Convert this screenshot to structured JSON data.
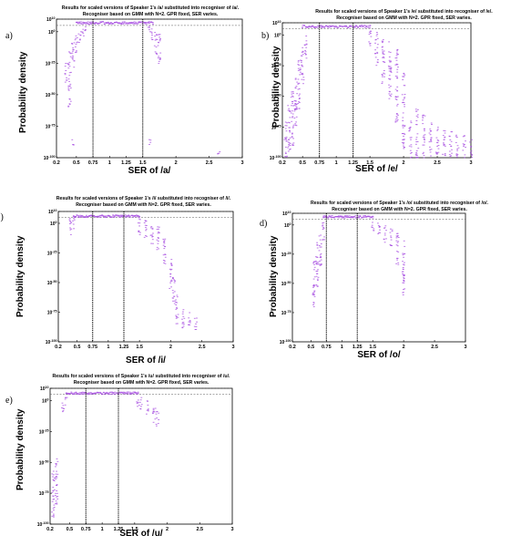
{
  "colors": {
    "points": "#a64ce0",
    "frame": "#000000",
    "dashed": "#555555"
  },
  "chart_data": [
    {
      "type": "scatter",
      "panel_label": "a)",
      "title_line1": "Results for scaled versions of Speaker 1's /a/ substituted into recogniser of /a/.",
      "title_line2": "Recogniser based on GMM with N=2. GPR fixed, SER varies.",
      "xlabel": "SER of /a/",
      "ylabel": "Probability density",
      "x_ticks": [
        "0.2",
        "0.5",
        "0.75",
        "1",
        "1.25",
        "1.5",
        "2",
        "2.5",
        "3"
      ],
      "y_ticks": [
        "10^10",
        "10^0",
        "10^-25",
        "10^-50",
        "10^-75",
        "10^-100"
      ],
      "xlim": [
        0.2,
        3
      ],
      "log_ylim": [
        -100,
        10
      ],
      "vlines": [
        0.75,
        1.5
      ],
      "plateau": {
        "x_start": 0.5,
        "x_end": 1.65,
        "log_y": 8
      },
      "clusters": [
        {
          "x": 0.35,
          "log_y": [
            -25,
            -40
          ]
        },
        {
          "x": 0.4,
          "log_y": [
            -15,
            -60
          ]
        },
        {
          "x": 0.45,
          "log_y": [
            -8,
            -30
          ]
        },
        {
          "x": 0.5,
          "log_y": [
            -3,
            -20
          ]
        },
        {
          "x": 0.55,
          "log_y": [
            0,
            -10
          ]
        },
        {
          "x": 0.6,
          "log_y": [
            3,
            -5
          ]
        },
        {
          "x": 0.65,
          "log_y": [
            5,
            0
          ]
        },
        {
          "x": 1.6,
          "log_y": [
            5,
            -2
          ]
        },
        {
          "x": 1.65,
          "log_y": [
            3,
            -8
          ]
        },
        {
          "x": 1.7,
          "log_y": [
            0,
            -20
          ]
        },
        {
          "x": 1.75,
          "log_y": [
            -2,
            -30
          ]
        },
        {
          "x": 0.45,
          "log_y": [
            -85,
            -90
          ]
        },
        {
          "x": 1.6,
          "log_y": [
            -85,
            -90
          ]
        },
        {
          "x": 2.65,
          "log_y": [
            -95,
            -98
          ]
        }
      ]
    },
    {
      "type": "scatter",
      "panel_label": "b)",
      "title_line1": "Results for scaled versions of Speaker 1's /e/ substituted into recogniser of /e/.",
      "title_line2": "Recogniser based on GMM with N=2. GPR fixed, SER varies.",
      "xlabel": "SER of /e/",
      "ylabel": "Probability density",
      "x_ticks": [
        "0.2",
        "0.5",
        "0.75",
        "1",
        "1.25",
        "1.5",
        "2",
        "2.5",
        "3"
      ],
      "y_ticks": [
        "10^10",
        "10^0",
        "10^-25",
        "10^-50",
        "10^-75",
        "10^-100"
      ],
      "xlim": [
        0.2,
        3
      ],
      "log_ylim": [
        -100,
        10
      ],
      "vlines": [
        0.75,
        1.25
      ],
      "plateau": {
        "x_start": 0.5,
        "x_end": 1.5,
        "log_y": 8
      },
      "clusters": [
        {
          "x": 0.25,
          "log_y": [
            -70,
            -100
          ]
        },
        {
          "x": 0.3,
          "log_y": [
            -55,
            -95
          ]
        },
        {
          "x": 0.35,
          "log_y": [
            -45,
            -90
          ]
        },
        {
          "x": 0.4,
          "log_y": [
            -35,
            -80
          ]
        },
        {
          "x": 0.45,
          "log_y": [
            -20,
            -60
          ]
        },
        {
          "x": 0.5,
          "log_y": [
            -10,
            -40
          ]
        },
        {
          "x": 0.55,
          "log_y": [
            0,
            -20
          ]
        },
        {
          "x": 1.5,
          "log_y": [
            5,
            -10
          ]
        },
        {
          "x": 1.6,
          "log_y": [
            3,
            -25
          ]
        },
        {
          "x": 1.7,
          "log_y": [
            0,
            -40
          ]
        },
        {
          "x": 1.8,
          "log_y": [
            -5,
            -55
          ]
        },
        {
          "x": 1.9,
          "log_y": [
            -10,
            -75
          ]
        },
        {
          "x": 2.0,
          "log_y": [
            -30,
            -95
          ]
        },
        {
          "x": 2.1,
          "log_y": [
            -70,
            -100
          ]
        },
        {
          "x": 2.2,
          "log_y": [
            -60,
            -100
          ]
        },
        {
          "x": 2.3,
          "log_y": [
            -65,
            -100
          ]
        },
        {
          "x": 2.4,
          "log_y": [
            -70,
            -100
          ]
        },
        {
          "x": 2.5,
          "log_y": [
            -75,
            -100
          ]
        },
        {
          "x": 2.6,
          "log_y": [
            -75,
            -100
          ]
        },
        {
          "x": 2.7,
          "log_y": [
            -78,
            -100
          ]
        },
        {
          "x": 2.8,
          "log_y": [
            -80,
            -100
          ]
        },
        {
          "x": 2.9,
          "log_y": [
            -82,
            -100
          ]
        },
        {
          "x": 3.0,
          "log_y": [
            -85,
            -100
          ]
        }
      ]
    },
    {
      "type": "scatter",
      "panel_label": "c)",
      "title_line1": "Results for scaled versions of Speaker 1's /i/ substituted into recogniser of /i/.",
      "title_line2": "Recogniser based on GMM with N=2. GPR fixed, SER varies.",
      "xlabel": "SER of /i/",
      "ylabel": "Probability density",
      "x_ticks": [
        "0.2",
        "0.5",
        "0.75",
        "1",
        "1.25",
        "1.5",
        "2",
        "2.5",
        "3"
      ],
      "y_ticks": [
        "10^10",
        "10^0",
        "10^-25",
        "10^-50",
        "10^-75",
        "10^-100"
      ],
      "xlim": [
        0.2,
        3
      ],
      "log_ylim": [
        -100,
        10
      ],
      "vlines": [
        0.75,
        1.25
      ],
      "plateau": {
        "x_start": 0.45,
        "x_end": 1.5,
        "log_y": 7
      },
      "clusters": [
        {
          "x": 0.4,
          "log_y": [
            5,
            -10
          ]
        },
        {
          "x": 0.45,
          "log_y": [
            6,
            -5
          ]
        },
        {
          "x": 1.5,
          "log_y": [
            5,
            -10
          ]
        },
        {
          "x": 1.6,
          "log_y": [
            3,
            -15
          ]
        },
        {
          "x": 1.7,
          "log_y": [
            0,
            -20
          ]
        },
        {
          "x": 1.8,
          "log_y": [
            -3,
            -25
          ]
        },
        {
          "x": 1.9,
          "log_y": [
            -8,
            -35
          ]
        },
        {
          "x": 2.0,
          "log_y": [
            -30,
            -55
          ]
        },
        {
          "x": 2.05,
          "log_y": [
            -45,
            -70
          ]
        },
        {
          "x": 2.1,
          "log_y": [
            -60,
            -85
          ]
        },
        {
          "x": 2.2,
          "log_y": [
            -70,
            -90
          ]
        },
        {
          "x": 2.3,
          "log_y": [
            -75,
            -88
          ]
        },
        {
          "x": 2.4,
          "log_y": [
            -78,
            -90
          ]
        }
      ]
    },
    {
      "type": "scatter",
      "panel_label": "d)",
      "title_line1": "Results for scaled versions of Speaker 1's /o/ substituted into recogniser of /o/.",
      "title_line2": "Recogniser based on GMM with N=2. GPR fixed, SER varies.",
      "xlabel": "SER of /o/",
      "ylabel": "Probability density",
      "x_ticks": [
        "0.2",
        "0.5",
        "0.75",
        "1",
        "1.25",
        "1.5",
        "2",
        "2.5",
        "3"
      ],
      "y_ticks": [
        "10^10",
        "10^0",
        "10^-25",
        "10^-50",
        "10^-75",
        "10^-100"
      ],
      "xlim": [
        0.2,
        3
      ],
      "log_ylim": [
        -100,
        10
      ],
      "vlines": [
        0.75,
        1.25
      ],
      "plateau": {
        "x_start": 0.7,
        "x_end": 1.5,
        "log_y": 8
      },
      "clusters": [
        {
          "x": 0.55,
          "log_y": [
            -30,
            -70
          ]
        },
        {
          "x": 0.6,
          "log_y": [
            -15,
            -55
          ]
        },
        {
          "x": 0.65,
          "log_y": [
            -5,
            -35
          ]
        },
        {
          "x": 0.7,
          "log_y": [
            2,
            -15
          ]
        },
        {
          "x": 1.5,
          "log_y": [
            5,
            -5
          ]
        },
        {
          "x": 1.6,
          "log_y": [
            3,
            -10
          ]
        },
        {
          "x": 1.7,
          "log_y": [
            0,
            -15
          ]
        },
        {
          "x": 1.8,
          "log_y": [
            -3,
            -20
          ]
        },
        {
          "x": 1.9,
          "log_y": [
            -5,
            -35
          ]
        },
        {
          "x": 2.0,
          "log_y": [
            -10,
            -60
          ]
        }
      ]
    },
    {
      "type": "scatter",
      "panel_label": "e)",
      "title_line1": "Results for scaled versions of Speaker 1's /u/ substituted into recogniser of /u/.",
      "title_line2": "Recogniser based on GMM with N=2. GPR fixed, SER varies.",
      "xlabel": "SER of /u/",
      "ylabel": "Probability density",
      "x_ticks": [
        "0.2",
        "0.5",
        "0.75",
        "1",
        "1.25",
        "1.5",
        "2",
        "2.5",
        "3"
      ],
      "y_ticks": [
        "10^10",
        "10^0",
        "10^-25",
        "10^-50",
        "10^-75",
        "10^-100"
      ],
      "xlim": [
        0.2,
        3
      ],
      "log_ylim": [
        -100,
        10
      ],
      "vlines": [
        0.75,
        1.25
      ],
      "plateau": {
        "x_start": 0.45,
        "x_end": 1.55,
        "log_y": 7
      },
      "clusters": [
        {
          "x": 0.25,
          "log_y": [
            -55,
            -95
          ]
        },
        {
          "x": 0.3,
          "log_y": [
            -45,
            -85
          ]
        },
        {
          "x": 0.4,
          "log_y": [
            0,
            -10
          ]
        },
        {
          "x": 0.45,
          "log_y": [
            3,
            -5
          ]
        },
        {
          "x": 1.55,
          "log_y": [
            5,
            -5
          ]
        },
        {
          "x": 1.6,
          "log_y": [
            3,
            -8
          ]
        },
        {
          "x": 1.7,
          "log_y": [
            0,
            -12
          ]
        },
        {
          "x": 1.8,
          "log_y": [
            -3,
            -18
          ]
        },
        {
          "x": 1.85,
          "log_y": [
            -8,
            -22
          ]
        }
      ]
    }
  ]
}
